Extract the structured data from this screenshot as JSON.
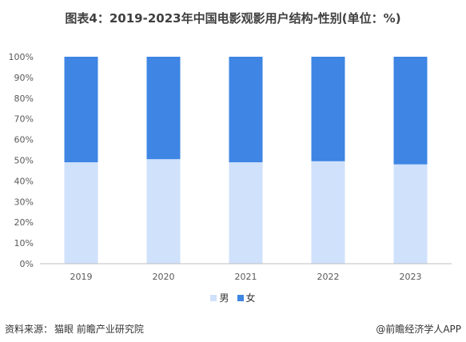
{
  "header": {
    "title": "图表4：2019-2023年中国电影观影用户结构-性别(单位：%)"
  },
  "footer": {
    "source_label": "资料来源：",
    "source_value": "猫眼 前瞻产业研究院",
    "brand": "@前瞻经济学人APP"
  },
  "colors": {
    "male": "#cfe1fb",
    "female": "#3e85e4",
    "axis": "#bfbfbf",
    "text": "#595959"
  },
  "chart_data": {
    "type": "bar",
    "stacked": true,
    "categories": [
      "2019",
      "2020",
      "2021",
      "2022",
      "2023"
    ],
    "series": [
      {
        "name": "男",
        "values": [
          49,
          50.5,
          49,
          49.5,
          48
        ]
      },
      {
        "name": "女",
        "values": [
          51,
          49.5,
          51,
          50.5,
          52
        ]
      }
    ],
    "ylim": [
      0,
      100
    ],
    "y_ticks": [
      "0%",
      "10%",
      "20%",
      "30%",
      "40%",
      "50%",
      "60%",
      "70%",
      "80%",
      "90%",
      "100%"
    ],
    "grid": false,
    "legend_position": "bottom"
  }
}
